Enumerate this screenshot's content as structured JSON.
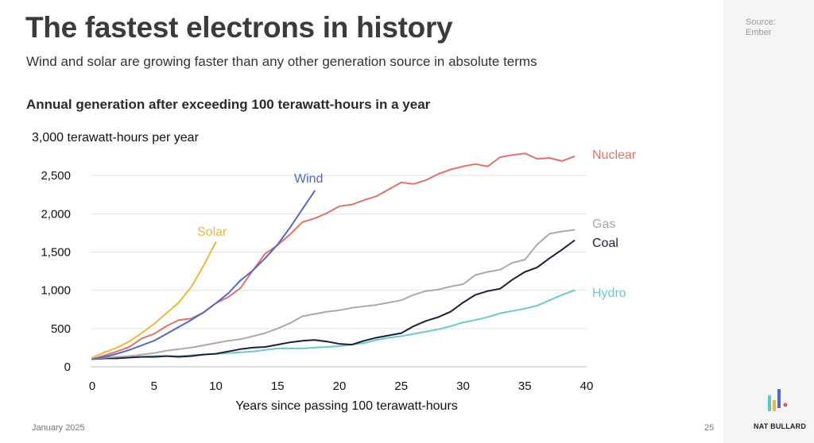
{
  "slide": {
    "title": "The fastest electrons in history",
    "subtitle": "Wind and solar are growing faster than any other generation source in absolute terms",
    "source_line1": "Source:",
    "source_line2": "Ember",
    "date": "January 2025",
    "page_number": "25",
    "brand": "NAT BULLARD"
  },
  "colors": {
    "nuclear": "#e07368",
    "wind": "#5565c9",
    "solar": "#eab83e",
    "gas": "#aaaaaa",
    "coal": "#1c1f3a",
    "hydro": "#6cc8cc",
    "logo_teal": "#5ec3c3",
    "logo_yellow": "#e9b83d",
    "logo_blue": "#5565c9",
    "logo_red": "#e05a5a"
  },
  "chart_data": {
    "type": "line",
    "title": "Annual generation after exceeding 100 terawatt-hours in a year",
    "ylabel": "3,000 terawatt-hours per year",
    "xlabel": "Years since passing 100 terawatt-hours",
    "xlim": [
      0,
      40
    ],
    "ylim": [
      0,
      3000
    ],
    "x_ticks": [
      "0",
      "5",
      "10",
      "15",
      "20",
      "25",
      "30",
      "35",
      "40"
    ],
    "y_ticks": [
      "0",
      "500",
      "1,000",
      "1,500",
      "2,000",
      "2,500"
    ],
    "grid": "horizontal",
    "legend": "inline labels at line ends",
    "series": [
      {
        "name": "Solar",
        "x": [
          0,
          1,
          2,
          3,
          4,
          5,
          6,
          7,
          8,
          9,
          10
        ],
        "y": [
          120,
          190,
          250,
          330,
          440,
          560,
          700,
          840,
          1040,
          1320,
          1630
        ]
      },
      {
        "name": "Wind",
        "x": [
          0,
          1,
          2,
          3,
          4,
          5,
          6,
          7,
          8,
          9,
          10,
          11,
          12,
          13,
          14,
          15,
          16,
          17,
          18
        ],
        "y": [
          100,
          130,
          170,
          220,
          280,
          340,
          430,
          520,
          610,
          710,
          830,
          960,
          1130,
          1260,
          1420,
          1600,
          1820,
          2060,
          2300
        ]
      },
      {
        "name": "Nuclear",
        "x": [
          0,
          1,
          2,
          3,
          4,
          5,
          6,
          7,
          8,
          9,
          10,
          11,
          12,
          13,
          14,
          15,
          16,
          17,
          18,
          19,
          20,
          21,
          22,
          23,
          24,
          25,
          26,
          27,
          28,
          29,
          30,
          31,
          32,
          33,
          34,
          35,
          36,
          37,
          38,
          39
        ],
        "y": [
          100,
          150,
          200,
          260,
          370,
          430,
          530,
          610,
          630,
          710,
          830,
          910,
          1030,
          1260,
          1480,
          1590,
          1730,
          1890,
          1940,
          2010,
          2100,
          2120,
          2180,
          2230,
          2320,
          2410,
          2390,
          2440,
          2520,
          2580,
          2620,
          2650,
          2620,
          2740,
          2770,
          2790,
          2720,
          2730,
          2690,
          2750
        ]
      },
      {
        "name": "Gas",
        "x": [
          0,
          1,
          2,
          3,
          4,
          5,
          6,
          7,
          8,
          9,
          10,
          11,
          12,
          13,
          14,
          15,
          16,
          17,
          18,
          19,
          20,
          21,
          22,
          23,
          24,
          25,
          26,
          27,
          28,
          29,
          30,
          31,
          32,
          33,
          34,
          35,
          36,
          37,
          38,
          39
        ],
        "y": [
          100,
          120,
          130,
          140,
          160,
          180,
          210,
          230,
          250,
          280,
          310,
          340,
          360,
          400,
          440,
          500,
          570,
          660,
          690,
          720,
          740,
          770,
          790,
          810,
          840,
          870,
          940,
          990,
          1010,
          1050,
          1080,
          1200,
          1240,
          1270,
          1360,
          1400,
          1600,
          1740,
          1770,
          1790
        ]
      },
      {
        "name": "Coal",
        "x": [
          0,
          1,
          2,
          3,
          4,
          5,
          6,
          7,
          8,
          9,
          10,
          11,
          12,
          13,
          14,
          15,
          16,
          17,
          18,
          19,
          20,
          21,
          22,
          23,
          24,
          25,
          26,
          27,
          28,
          29,
          30,
          31,
          32,
          33,
          34,
          35,
          36,
          37,
          38,
          39
        ],
        "y": [
          100,
          110,
          110,
          120,
          130,
          130,
          140,
          130,
          140,
          160,
          170,
          200,
          230,
          250,
          260,
          290,
          320,
          340,
          350,
          330,
          300,
          290,
          340,
          380,
          410,
          440,
          530,
          600,
          650,
          720,
          840,
          940,
          990,
          1020,
          1140,
          1240,
          1300,
          1420,
          1530,
          1650
        ]
      },
      {
        "name": "Hydro",
        "x": [
          0,
          1,
          2,
          3,
          4,
          5,
          6,
          7,
          8,
          9,
          10,
          11,
          12,
          13,
          14,
          15,
          16,
          17,
          18,
          19,
          20,
          21,
          22,
          23,
          24,
          25,
          26,
          27,
          28,
          29,
          30,
          31,
          32,
          33,
          34,
          35,
          36,
          37,
          38,
          39
        ],
        "y": [
          100,
          110,
          120,
          120,
          130,
          140,
          140,
          140,
          150,
          160,
          170,
          180,
          190,
          200,
          220,
          240,
          240,
          240,
          250,
          260,
          270,
          290,
          310,
          350,
          380,
          400,
          430,
          460,
          490,
          530,
          580,
          610,
          650,
          700,
          730,
          760,
          800,
          870,
          940,
          1000
        ]
      }
    ]
  }
}
